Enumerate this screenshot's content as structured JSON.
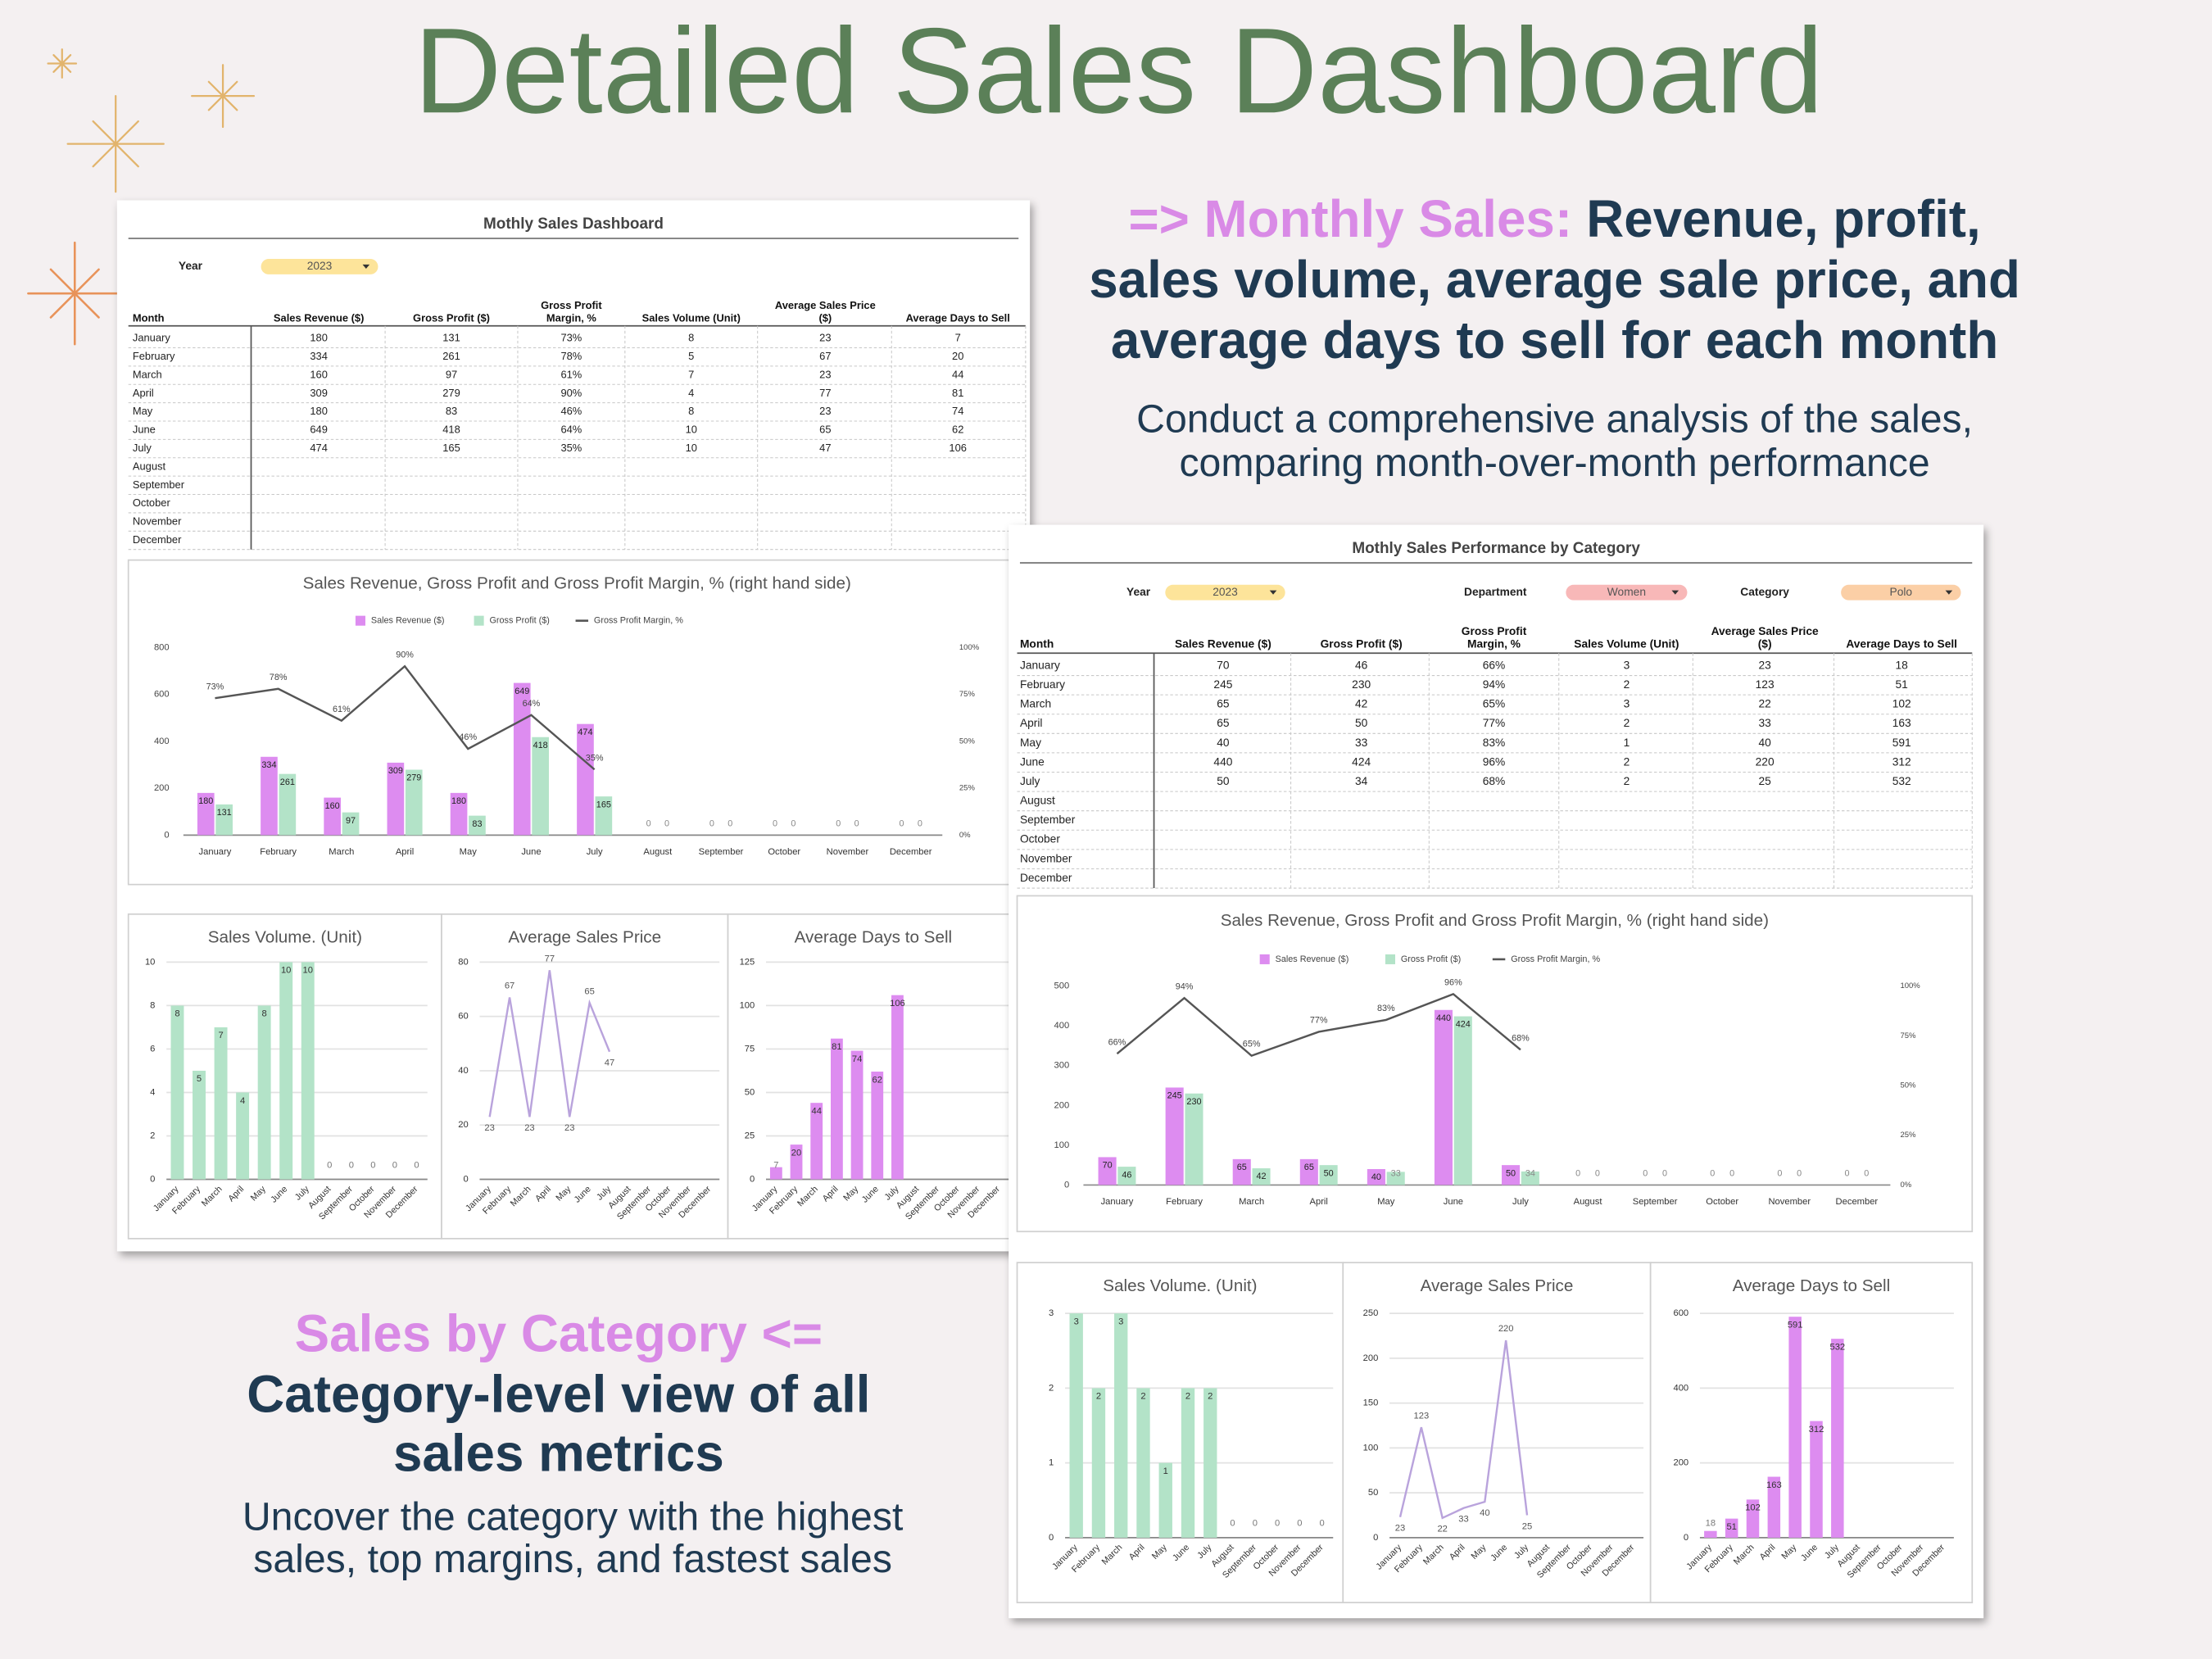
{
  "title": "Detailed Sales Dashboard",
  "monthly_text": {
    "heading": "=> Monthly Sales:",
    "lines": [
      "Revenue, profit,",
      "sales volume, average sale price, and",
      "average days to sell for each month"
    ],
    "description": [
      "Conduct a comprehensive analysis of the sales,",
      "comparing month-over-month performance"
    ]
  },
  "category_text": {
    "heading": "Sales by Category <=",
    "lines": [
      "Category-level view of all",
      "sales metrics"
    ],
    "description": [
      "Uncover the category with the highest",
      "sales, top margins, and fastest sales"
    ]
  },
  "dashboards": [
    {
      "title": "Mothly Sales Dashboard",
      "filters": [
        {
          "label": "Year",
          "value": "2023"
        }
      ],
      "table": {
        "columns": [
          [
            "Month"
          ],
          [
            "Sales Revenue ($)"
          ],
          [
            "Gross Profit ($)"
          ],
          [
            "Gross Profit",
            "Margin, %"
          ],
          [
            "Sales Volume (Unit)"
          ],
          [
            "Average Sales Price",
            "($)"
          ],
          [
            "Average Days to Sell"
          ]
        ],
        "rows": [
          [
            "January",
            180,
            131,
            "73%",
            8,
            23,
            7
          ],
          [
            "February",
            334,
            261,
            "78%",
            5,
            67,
            20
          ],
          [
            "March",
            160,
            97,
            "61%",
            7,
            23,
            44
          ],
          [
            "April",
            309,
            279,
            "90%",
            4,
            77,
            81
          ],
          [
            "May",
            180,
            83,
            "46%",
            8,
            23,
            74
          ],
          [
            "June",
            649,
            418,
            "64%",
            10,
            65,
            62
          ],
          [
            "July",
            474,
            165,
            "35%",
            10,
            47,
            106
          ],
          [
            "August"
          ],
          [
            "September"
          ],
          [
            "October"
          ],
          [
            "November"
          ],
          [
            "December"
          ]
        ]
      },
      "main_chart": {
        "type": "bar",
        "title": "Sales Revenue, Gross Profit and Gross Profit Margin, % (right hand side)",
        "categories": [
          "January",
          "February",
          "March",
          "April",
          "May",
          "June",
          "July",
          "August",
          "September",
          "October",
          "November",
          "December"
        ],
        "series": [
          {
            "name": "Sales Revenue ($)",
            "color": "#dd8cf0",
            "values": [
              180,
              334,
              160,
              309,
              180,
              649,
              474,
              0,
              0,
              0,
              0,
              0
            ]
          },
          {
            "name": "Gross Profit ($)",
            "color": "#b3e3c8",
            "values": [
              131,
              261,
              97,
              279,
              83,
              418,
              165,
              0,
              0,
              0,
              0,
              0
            ]
          },
          {
            "name": "Gross Profit Margin, %",
            "type": "line",
            "axis": "y2",
            "color": "#555555",
            "values": [
              73,
              78,
              61,
              90,
              46,
              64,
              35,
              null,
              null,
              null,
              null,
              null
            ],
            "value_labels": [
              "73%",
              "78%",
              "61%",
              "90%",
              "46%",
              "64%",
              "35%",
              null,
              null,
              null,
              null,
              null
            ]
          }
        ],
        "ylim": [
          0,
          800
        ],
        "yticks": [
          0,
          200,
          400,
          600,
          800
        ],
        "y2lim": [
          0,
          100
        ],
        "y2ticks": [
          {
            "value": 0,
            "label": "0%"
          },
          {
            "value": 25,
            "label": "25%"
          },
          {
            "value": 50,
            "label": "50%"
          },
          {
            "value": 75,
            "label": "75%"
          },
          {
            "value": 100,
            "label": "100%"
          }
        ],
        "grid": false,
        "legend": "top"
      },
      "small_charts": [
        {
          "type": "bar",
          "title": "Sales Volume. (Unit)",
          "color": "#b3e3c8",
          "categories": [
            "January",
            "February",
            "March",
            "April",
            "May",
            "June",
            "July",
            "August",
            "September",
            "October",
            "November",
            "December"
          ],
          "values": [
            8,
            5,
            7,
            4,
            8,
            10,
            10,
            0,
            0,
            0,
            0,
            0
          ],
          "ylim": [
            0,
            10
          ],
          "yticks": [
            0,
            2,
            4,
            6,
            8,
            10
          ],
          "grid": true
        },
        {
          "type": "line",
          "title": "Average Sales Price",
          "color": "#b9a3dc",
          "categories": [
            "January",
            "February",
            "March",
            "April",
            "May",
            "June",
            "July",
            "August",
            "September",
            "October",
            "November",
            "December"
          ],
          "values": [
            23,
            67,
            23,
            77,
            23,
            65,
            47,
            null,
            null,
            null,
            null,
            null
          ],
          "ylim": [
            0,
            80
          ],
          "yticks": [
            0,
            20,
            40,
            60,
            80
          ],
          "grid": true
        },
        {
          "type": "bar",
          "title": "Average Days to Sell",
          "color": "#dd8cf0",
          "categories": [
            "January",
            "February",
            "March",
            "April",
            "May",
            "June",
            "July",
            "August",
            "September",
            "October",
            "November",
            "December"
          ],
          "values": [
            7,
            20,
            44,
            81,
            74,
            62,
            106,
            null,
            null,
            null,
            null,
            null
          ],
          "ylim": [
            0,
            125
          ],
          "yticks": [
            0,
            25,
            50,
            75,
            100,
            125
          ],
          "grid": true
        }
      ]
    },
    {
      "title": "Mothly Sales Performance by Category",
      "filters": [
        {
          "label": "Year",
          "value": "2023"
        },
        {
          "label": "Department",
          "value": "Women"
        },
        {
          "label": "Category",
          "value": "Polo"
        }
      ],
      "table": {
        "columns": [
          [
            "Month"
          ],
          [
            "Sales Revenue ($)"
          ],
          [
            "Gross Profit ($)"
          ],
          [
            "Gross Profit",
            "Margin, %"
          ],
          [
            "Sales Volume (Unit)"
          ],
          [
            "Average Sales Price",
            "($)"
          ],
          [
            "Average Days to Sell"
          ]
        ],
        "rows": [
          [
            "January",
            70,
            46,
            "66%",
            3,
            23,
            18
          ],
          [
            "February",
            245,
            230,
            "94%",
            2,
            123,
            51
          ],
          [
            "March",
            65,
            42,
            "65%",
            3,
            22,
            102
          ],
          [
            "April",
            65,
            50,
            "77%",
            2,
            33,
            163
          ],
          [
            "May",
            40,
            33,
            "83%",
            1,
            40,
            591
          ],
          [
            "June",
            440,
            424,
            "96%",
            2,
            220,
            312
          ],
          [
            "July",
            50,
            34,
            "68%",
            2,
            25,
            532
          ],
          [
            "August"
          ],
          [
            "September"
          ],
          [
            "October"
          ],
          [
            "November"
          ],
          [
            "December"
          ]
        ]
      },
      "main_chart": {
        "type": "bar",
        "title": "Sales Revenue, Gross Profit and Gross Profit Margin, % (right hand side)",
        "categories": [
          "January",
          "February",
          "March",
          "April",
          "May",
          "June",
          "July",
          "August",
          "September",
          "October",
          "November",
          "December"
        ],
        "series": [
          {
            "name": "Sales Revenue ($)",
            "color": "#dd8cf0",
            "values": [
              70,
              245,
              65,
              65,
              40,
              440,
              50,
              0,
              0,
              0,
              0,
              0
            ]
          },
          {
            "name": "Gross Profit ($)",
            "color": "#b3e3c8",
            "values": [
              46,
              230,
              42,
              50,
              33,
              424,
              34,
              0,
              0,
              0,
              0,
              0
            ]
          },
          {
            "name": "Gross Profit Margin, %",
            "type": "line",
            "axis": "y2",
            "color": "#555555",
            "values": [
              66,
              94,
              65,
              77,
              83,
              96,
              68,
              null,
              null,
              null,
              null,
              null
            ],
            "value_labels": [
              "66%",
              "94%",
              "65%",
              "77%",
              "83%",
              "96%",
              "68%",
              null,
              null,
              null,
              null,
              null
            ]
          }
        ],
        "ylim": [
          0,
          500
        ],
        "yticks": [
          0,
          100,
          200,
          300,
          400,
          500
        ],
        "y2lim": [
          0,
          100
        ],
        "y2ticks": [
          {
            "value": 0,
            "label": "0%"
          },
          {
            "value": 25,
            "label": "25%"
          },
          {
            "value": 50,
            "label": "50%"
          },
          {
            "value": 75,
            "label": "75%"
          },
          {
            "value": 100,
            "label": "100%"
          }
        ],
        "grid": false,
        "legend": "top"
      },
      "small_charts": [
        {
          "type": "bar",
          "title": "Sales Volume. (Unit)",
          "color": "#b3e3c8",
          "categories": [
            "January",
            "February",
            "March",
            "April",
            "May",
            "June",
            "July",
            "August",
            "September",
            "October",
            "November",
            "December"
          ],
          "values": [
            3,
            2,
            3,
            2,
            1,
            2,
            2,
            0,
            0,
            0,
            0,
            0
          ],
          "ylim": [
            0,
            3
          ],
          "yticks": [
            0,
            1,
            2,
            3
          ],
          "grid": true
        },
        {
          "type": "line",
          "title": "Average Sales Price",
          "color": "#b9a3dc",
          "categories": [
            "January",
            "February",
            "March",
            "April",
            "May",
            "June",
            "July",
            "August",
            "September",
            "October",
            "November",
            "December"
          ],
          "values": [
            23,
            123,
            22,
            33,
            40,
            220,
            25,
            null,
            null,
            null,
            null,
            null
          ],
          "ylim": [
            0,
            250
          ],
          "yticks": [
            0,
            50,
            100,
            150,
            200,
            250
          ],
          "grid": true
        },
        {
          "type": "bar",
          "title": "Average Days to Sell",
          "color": "#dd8cf0",
          "categories": [
            "January",
            "February",
            "March",
            "April",
            "May",
            "June",
            "July",
            "August",
            "September",
            "October",
            "November",
            "December"
          ],
          "values": [
            18,
            51,
            102,
            163,
            591,
            312,
            532,
            null,
            null,
            null,
            null,
            null
          ],
          "ylim": [
            0,
            600
          ],
          "yticks": [
            0,
            200,
            400,
            600
          ],
          "grid": true
        }
      ]
    }
  ]
}
